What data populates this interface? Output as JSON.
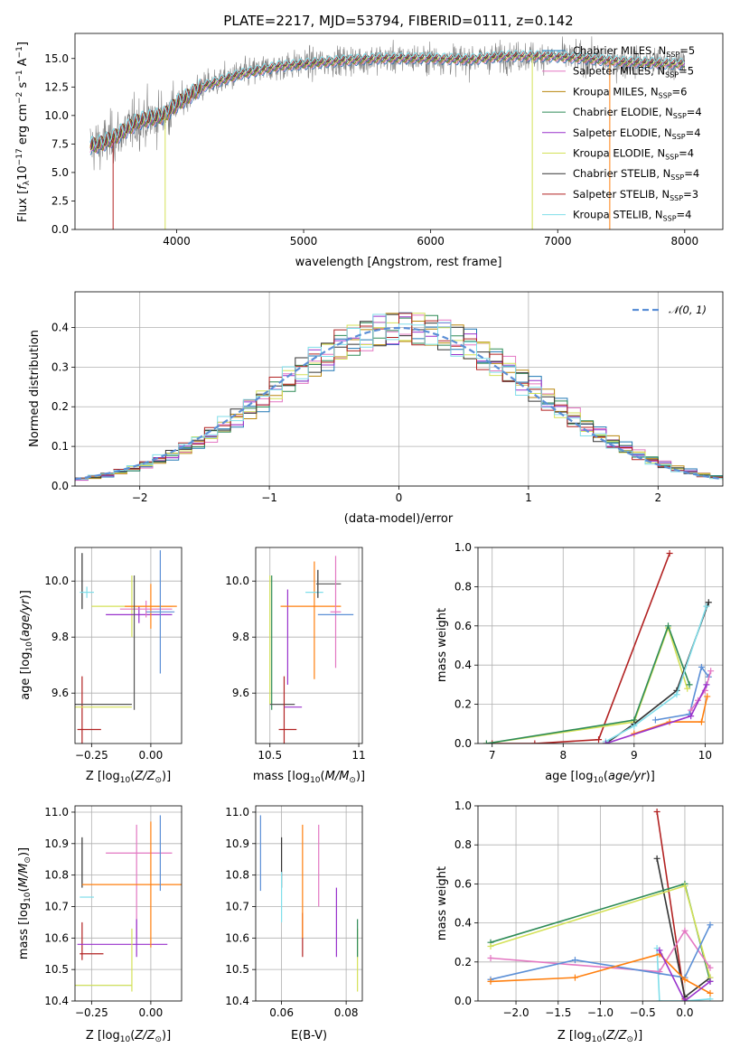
{
  "chart_data": [
    {
      "type": "line",
      "title": "PLATE=2217, MJD=53794, FIBERID=0111, z=0.142",
      "xlabel": "wavelength [Angstrom, rest frame]",
      "ylabel": "Flux [f_λ10^-17 erg cm^-2 s^-1 A^-1]",
      "xlim": [
        3200,
        8300
      ],
      "ylim": [
        0,
        17.2
      ],
      "xticks": [
        4000,
        5000,
        6000,
        7000,
        8000
      ],
      "yticks": [
        0.0,
        2.5,
        5.0,
        7.5,
        10.0,
        12.5,
        15.0
      ],
      "legend_position": "top-right",
      "series": [
        {
          "name": "Chabrier MILES, N_SSP=5",
          "color": "#1f77b4"
        },
        {
          "name": "Salpeter MILES, N_SSP=5",
          "color": "#e377c2"
        },
        {
          "name": "Kroupa MILES, N_SSP=6",
          "color": "#b8860b"
        },
        {
          "name": "Chabrier ELODIE, N_SSP=4",
          "color": "#2e8b57"
        },
        {
          "name": "Salpeter ELODIE, N_SSP=4",
          "color": "#9932cc"
        },
        {
          "name": "Kroupa ELODIE, N_SSP=4",
          "color": "#d4e157"
        },
        {
          "name": "Chabrier STELIB, N_SSP=4",
          "color": "#333333"
        },
        {
          "name": "Salpeter STELIB, N_SSP=3",
          "color": "#b22222"
        },
        {
          "name": "Kroupa STELIB, N_SSP=4",
          "color": "#80deea"
        }
      ],
      "continuum": {
        "x": [
          3300,
          3400,
          3500,
          3700,
          3900,
          4000,
          4200,
          4500,
          4800,
          5000,
          5300,
          5600,
          6000,
          6300,
          6600,
          6900,
          7200,
          7500,
          8000
        ],
        "y": [
          7.3,
          7.5,
          8.0,
          9.5,
          10.0,
          11.0,
          12.5,
          13.6,
          14.3,
          14.5,
          14.8,
          15.0,
          15.0,
          14.9,
          15.2,
          15.2,
          15.0,
          14.7,
          14.5
        ]
      }
    },
    {
      "type": "step",
      "xlabel": "(data-model)/error",
      "ylabel": "Normed distribution",
      "xlim": [
        -2.5,
        2.5
      ],
      "ylim": [
        0,
        0.49
      ],
      "xticks": [
        -2,
        -1,
        0,
        1,
        2
      ],
      "xtick_labels": [
        "−2",
        "−1",
        "0",
        "1",
        "2"
      ],
      "yticks": [
        0.0,
        0.1,
        0.2,
        0.3,
        0.4
      ],
      "reference_label": "𝒩(0, 1)",
      "reference_color": "#5b8fd6"
    },
    {
      "type": "scatter",
      "xlabel": "Z [log10(Z/Z⊙)]",
      "ylabel": "age  [log10(age/yr)]",
      "xlim": [
        -0.32,
        0.13
      ],
      "ylim": [
        9.42,
        10.12
      ],
      "xticks": [
        -0.25,
        0.0
      ],
      "xtick_labels": [
        "−0.25",
        "0.00"
      ],
      "yticks": [
        9.6,
        9.8,
        10.0
      ],
      "points": [
        {
          "x": -0.29,
          "y": 10.0,
          "xerr": 0.0,
          "yerr": 0.1,
          "color": "#333333"
        },
        {
          "x": -0.27,
          "y": 9.96,
          "xerr": 0.03,
          "yerr": 0.02,
          "color": "#80deea"
        },
        {
          "x": -0.08,
          "y": 9.91,
          "xerr": 0.17,
          "yerr": 0.11,
          "color": "#d4e157"
        },
        {
          "x": -0.05,
          "y": 9.88,
          "xerr": 0.14,
          "yerr": 0.03,
          "color": "#9932cc"
        },
        {
          "x": -0.02,
          "y": 9.9,
          "xerr": 0.11,
          "yerr": 0.03,
          "color": "#e377c2"
        },
        {
          "x": 0.0,
          "y": 9.91,
          "xerr": 0.11,
          "yerr": 0.08,
          "color": "#ff7f0e"
        },
        {
          "x": 0.04,
          "y": 9.89,
          "xerr": 0.06,
          "yerr": 0.22,
          "color": "#5b8fd6"
        },
        {
          "x": -0.07,
          "y": 9.78,
          "xerr": 0.0,
          "yerr": 0.24,
          "color": "#555555"
        },
        {
          "x": -0.29,
          "y": 9.47,
          "xerr": 0.0,
          "yerr": 0.19,
          "color": "#b22222"
        },
        {
          "x": -0.26,
          "y": 9.47,
          "xerr": 0.05,
          "yerr": 0.0,
          "color": "#b22222"
        },
        {
          "x": -0.2,
          "y": 9.56,
          "xerr": 0.12,
          "yerr": 0.0,
          "color": "#555555"
        },
        {
          "x": -0.2,
          "y": 9.55,
          "xerr": 0.12,
          "yerr": 0.0,
          "color": "#d4e157"
        }
      ]
    },
    {
      "type": "scatter",
      "xlabel": "mass [log10(M/M⊙)]",
      "ylabel": "",
      "xlim": [
        10.42,
        11.02
      ],
      "ylim": [
        9.42,
        10.12
      ],
      "xticks": [
        10.5,
        11.0
      ],
      "yticks": [
        9.6,
        9.8,
        10.0
      ],
      "points": [
        {
          "x": 10.5,
          "y": 9.79,
          "xerr": 0.0,
          "yerr": 0.23,
          "color": "#d4e157"
        },
        {
          "x": 10.51,
          "y": 9.78,
          "xerr": 0.0,
          "yerr": 0.24,
          "color": "#2e8b57"
        },
        {
          "x": 10.57,
          "y": 9.56,
          "xerr": 0.07,
          "yerr": 0.0,
          "color": "#555555"
        },
        {
          "x": 10.58,
          "y": 9.47,
          "xerr": 0.0,
          "yerr": 0.19,
          "color": "#b22222"
        },
        {
          "x": 10.6,
          "y": 9.47,
          "xerr": 0.05,
          "yerr": 0.0,
          "color": "#b22222"
        },
        {
          "x": 10.6,
          "y": 9.8,
          "xerr": 0.0,
          "yerr": 0.17,
          "color": "#9932cc"
        },
        {
          "x": 10.63,
          "y": 9.55,
          "xerr": 0.05,
          "yerr": 0.0,
          "color": "#9932cc"
        },
        {
          "x": 10.73,
          "y": 9.91,
          "xerr": 0.17,
          "yerr": 0.0,
          "color": "#ff7f0e"
        },
        {
          "x": 10.75,
          "y": 9.86,
          "xerr": 0.0,
          "yerr": 0.21,
          "color": "#ff7f0e"
        },
        {
          "x": 10.75,
          "y": 9.96,
          "xerr": 0.05,
          "yerr": 0.0,
          "color": "#80deea"
        },
        {
          "x": 10.77,
          "y": 9.99,
          "xerr": 0.0,
          "yerr": 0.05,
          "color": "#333333"
        },
        {
          "x": 10.83,
          "y": 9.99,
          "xerr": 0.07,
          "yerr": 0.0,
          "color": "#555555"
        },
        {
          "x": 10.87,
          "y": 9.89,
          "xerr": 0.03,
          "yerr": 0.2,
          "color": "#e377c2"
        },
        {
          "x": 10.87,
          "y": 9.88,
          "xerr": 0.1,
          "yerr": 0.0,
          "color": "#5b8fd6"
        }
      ]
    },
    {
      "type": "line",
      "xlabel": "age  [log10(age/yr)]",
      "ylabel": "mass weight",
      "xlim": [
        6.8,
        10.25
      ],
      "ylim": [
        0,
        1.0
      ],
      "xticks": [
        7,
        8,
        9,
        10
      ],
      "yticks": [
        0.0,
        0.2,
        0.4,
        0.6,
        0.8,
        1.0
      ],
      "series": [
        {
          "color": "#b22222",
          "x": [
            7.0,
            7.6,
            8.5,
            9.5
          ],
          "y": [
            0.0,
            0.0,
            0.02,
            0.97
          ]
        },
        {
          "color": "#d4e157",
          "x": [
            6.92,
            9.0,
            9.48,
            9.75
          ],
          "y": [
            0.0,
            0.11,
            0.59,
            0.28
          ]
        },
        {
          "color": "#2e8b57",
          "x": [
            6.92,
            9.0,
            9.48,
            9.78
          ],
          "y": [
            0.0,
            0.12,
            0.6,
            0.3
          ]
        },
        {
          "color": "#333333",
          "x": [
            8.6,
            9.0,
            9.6,
            10.05
          ],
          "y": [
            0.0,
            0.1,
            0.27,
            0.72
          ]
        },
        {
          "color": "#80deea",
          "x": [
            8.6,
            9.0,
            9.6,
            10.02
          ],
          "y": [
            0.01,
            0.09,
            0.25,
            0.7
          ]
        },
        {
          "color": "#5b8fd6",
          "x": [
            9.3,
            9.78,
            9.95,
            10.05
          ],
          "y": [
            0.12,
            0.15,
            0.39,
            0.34
          ]
        },
        {
          "color": "#e377c2",
          "x": [
            9.8,
            9.9,
            10.0,
            10.08
          ],
          "y": [
            0.17,
            0.22,
            0.27,
            0.37
          ]
        },
        {
          "color": "#ff7f0e",
          "x": [
            9.0,
            9.5,
            9.95,
            10.03
          ],
          "y": [
            0.05,
            0.11,
            0.11,
            0.24
          ]
        },
        {
          "color": "#9932cc",
          "x": [
            8.6,
            9.8,
            10.02
          ],
          "y": [
            0.0,
            0.14,
            0.3
          ]
        }
      ]
    },
    {
      "type": "scatter",
      "xlabel": "Z [log10(Z/Z⊙)]",
      "ylabel": "mass [log10(M/M⊙)]",
      "xlim": [
        -0.32,
        0.13
      ],
      "ylim": [
        10.4,
        11.02
      ],
      "xticks": [
        -0.25,
        0.0
      ],
      "xtick_labels": [
        "−0.25",
        "0.00"
      ],
      "yticks": [
        10.4,
        10.5,
        10.6,
        10.7,
        10.8,
        10.9,
        11.0
      ],
      "points": [
        {
          "x": -0.29,
          "y": 10.84,
          "xerr": 0.0,
          "yerr": 0.08,
          "color": "#333333"
        },
        {
          "x": -0.29,
          "y": 10.59,
          "xerr": 0.0,
          "yerr": 0.06,
          "color": "#b22222"
        },
        {
          "x": -0.25,
          "y": 10.55,
          "xerr": 0.05,
          "yerr": 0.0,
          "color": "#b22222"
        },
        {
          "x": -0.27,
          "y": 10.73,
          "xerr": 0.03,
          "yerr": 0.0,
          "color": "#80deea"
        },
        {
          "x": -0.2,
          "y": 10.45,
          "xerr": 0.12,
          "yerr": 0.0,
          "color": "#2e8b57"
        },
        {
          "x": -0.2,
          "y": 10.45,
          "xerr": 0.12,
          "yerr": 0.0,
          "color": "#d4e157"
        },
        {
          "x": -0.12,
          "y": 10.58,
          "xerr": 0.19,
          "yerr": 0.0,
          "color": "#9932cc"
        },
        {
          "x": -0.06,
          "y": 10.78,
          "xerr": 0.0,
          "yerr": 0.18,
          "color": "#e377c2"
        },
        {
          "x": -0.06,
          "y": 10.6,
          "xerr": 0.0,
          "yerr": 0.06,
          "color": "#9932cc"
        },
        {
          "x": -0.08,
          "y": 10.53,
          "xerr": 0.0,
          "yerr": 0.1,
          "color": "#d4e157"
        },
        {
          "x": -0.05,
          "y": 10.87,
          "xerr": 0.14,
          "yerr": 0.0,
          "color": "#e377c2"
        },
        {
          "x": -0.02,
          "y": 10.77,
          "xerr": 0.27,
          "yerr": 0.0,
          "color": "#ff7f0e"
        },
        {
          "x": 0.0,
          "y": 10.77,
          "xerr": 0.0,
          "yerr": 0.2,
          "color": "#ff7f0e"
        },
        {
          "x": 0.04,
          "y": 10.87,
          "xerr": 0.0,
          "yerr": 0.12,
          "color": "#5b8fd6"
        }
      ]
    },
    {
      "type": "scatter",
      "xlabel": "E(B-V)",
      "ylabel": "",
      "xlim": [
        0.052,
        0.085
      ],
      "ylim": [
        10.4,
        11.02
      ],
      "xticks": [
        0.06,
        0.08
      ],
      "yticks": [
        10.4,
        10.5,
        10.6,
        10.7,
        10.8,
        10.9,
        11.0
      ],
      "points": [
        {
          "x": 0.0535,
          "y": 10.87,
          "yerr": 0.12,
          "color": "#5b8fd6"
        },
        {
          "x": 0.06,
          "y": 10.84,
          "yerr": 0.08,
          "color": "#333333"
        },
        {
          "x": 0.06,
          "y": 10.73,
          "yerr": 0.08,
          "color": "#80deea"
        },
        {
          "x": 0.0665,
          "y": 10.61,
          "yerr": 0.07,
          "color": "#b22222"
        },
        {
          "x": 0.0665,
          "y": 10.78,
          "yerr": 0.18,
          "color": "#ff7f0e"
        },
        {
          "x": 0.0715,
          "y": 10.83,
          "yerr": 0.13,
          "color": "#e377c2"
        },
        {
          "x": 0.077,
          "y": 10.65,
          "yerr": 0.11,
          "color": "#9932cc"
        },
        {
          "x": 0.0835,
          "y": 10.53,
          "yerr": 0.1,
          "color": "#d4e157"
        },
        {
          "x": 0.0835,
          "y": 10.6,
          "yerr": 0.06,
          "color": "#2e8b57"
        }
      ]
    },
    {
      "type": "line",
      "xlabel": "Z [log10(Z/Z⊙)]",
      "ylabel": "mass weight",
      "xlim": [
        -2.45,
        0.45
      ],
      "ylim": [
        0,
        1.0
      ],
      "xticks": [
        -2.0,
        -1.5,
        -1.0,
        -0.5,
        0.0
      ],
      "xtick_labels": [
        "−2.0",
        "−1.5",
        "−1.0",
        "−0.5",
        "0.0"
      ],
      "yticks": [
        0.0,
        0.2,
        0.4,
        0.6,
        0.8,
        1.0
      ],
      "series": [
        {
          "color": "#b22222",
          "x": [
            -0.33,
            0.0
          ],
          "y": [
            0.97,
            0.01
          ]
        },
        {
          "color": "#333333",
          "x": [
            -0.33,
            0.0,
            0.3
          ],
          "y": [
            0.73,
            0.02,
            0.12
          ]
        },
        {
          "color": "#80deea",
          "x": [
            -0.33,
            -0.3,
            0.0,
            0.3
          ],
          "y": [
            0.27,
            0.0,
            0.0,
            0.01
          ]
        },
        {
          "color": "#2e8b57",
          "x": [
            -2.3,
            0.0,
            0.3
          ],
          "y": [
            0.3,
            0.6,
            0.1
          ]
        },
        {
          "color": "#d4e157",
          "x": [
            -2.3,
            0.0,
            0.3
          ],
          "y": [
            0.28,
            0.59,
            0.12
          ]
        },
        {
          "color": "#e377c2",
          "x": [
            -2.3,
            -0.3,
            0.0,
            0.3
          ],
          "y": [
            0.22,
            0.15,
            0.36,
            0.17
          ]
        },
        {
          "color": "#5b8fd6",
          "x": [
            -2.3,
            -1.3,
            0.0,
            0.3
          ],
          "y": [
            0.11,
            0.21,
            0.12,
            0.39
          ]
        },
        {
          "color": "#ff7f0e",
          "x": [
            -2.3,
            -1.3,
            -0.3,
            0.0,
            0.3
          ],
          "y": [
            0.1,
            0.12,
            0.24,
            0.11,
            0.04
          ]
        },
        {
          "color": "#9932cc",
          "x": [
            -0.3,
            0.0,
            0.3
          ],
          "y": [
            0.26,
            0.0,
            0.1
          ]
        }
      ]
    }
  ]
}
